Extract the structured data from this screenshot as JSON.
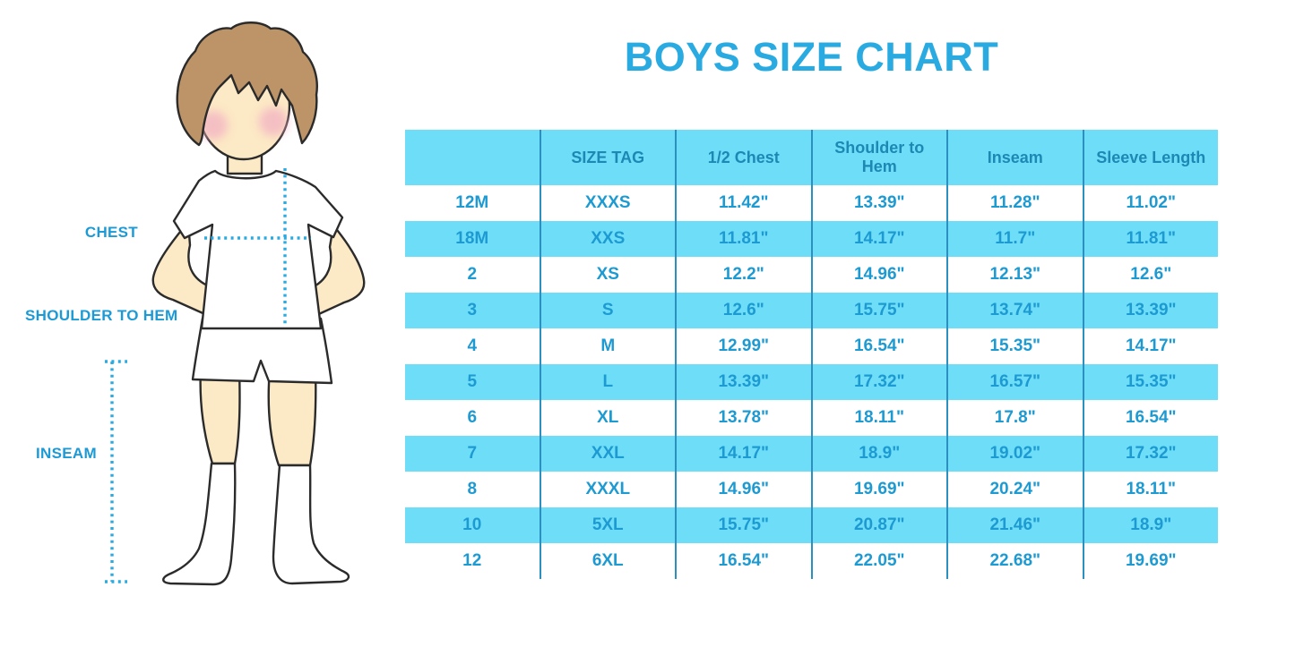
{
  "title": "BOYS SIZE CHART",
  "figure_labels": {
    "chest": "CHEST",
    "shoulder_to_hem": "SHOULDER TO HEM",
    "inseam": "INSEAM"
  },
  "chart_data": {
    "type": "table",
    "title": "BOYS SIZE CHART",
    "columns": [
      "",
      "SIZE TAG",
      "1/2 Chest",
      "Shoulder to Hem",
      "Inseam",
      "Sleeve Length"
    ],
    "rows": [
      [
        "12M",
        "XXXS",
        "11.42\"",
        "13.39\"",
        "11.28\"",
        "11.02\""
      ],
      [
        "18M",
        "XXS",
        "11.81\"",
        "14.17\"",
        "11.7\"",
        "11.81\""
      ],
      [
        "2",
        "XS",
        "12.2\"",
        "14.96\"",
        "12.13\"",
        "12.6\""
      ],
      [
        "3",
        "S",
        "12.6\"",
        "15.75\"",
        "13.74\"",
        "13.39\""
      ],
      [
        "4",
        "M",
        "12.99\"",
        "16.54\"",
        "15.35\"",
        "14.17\""
      ],
      [
        "5",
        "L",
        "13.39\"",
        "17.32\"",
        "16.57\"",
        "15.35\""
      ],
      [
        "6",
        "XL",
        "13.78\"",
        "18.11\"",
        "17.8\"",
        "16.54\""
      ],
      [
        "7",
        "XXL",
        "14.17\"",
        "18.9\"",
        "19.02\"",
        "17.32\""
      ],
      [
        "8",
        "XXXL",
        "14.96\"",
        "19.69\"",
        "20.24\"",
        "18.11\""
      ],
      [
        "10",
        "5XL",
        "15.75\"",
        "20.87\"",
        "21.46\"",
        "18.9\""
      ],
      [
        "12",
        "6XL",
        "16.54\"",
        "22.05\"",
        "22.68\"",
        "19.69\""
      ]
    ],
    "stripe_rows": [
      "18M",
      "3",
      "5",
      "7",
      "10"
    ],
    "legend_position": "none",
    "grid": "vertical-lines-only"
  },
  "colors": {
    "accent": "#29ABE2",
    "band": "#6EDEF8",
    "line": "#2B90C0",
    "header_text": "#1D88B4",
    "cell_text": "#1D9AD2",
    "label_text": "#1B9AD6",
    "skin": "#FCE9C5",
    "hair": "#BC9468",
    "cheek": "#F2AEC2"
  }
}
